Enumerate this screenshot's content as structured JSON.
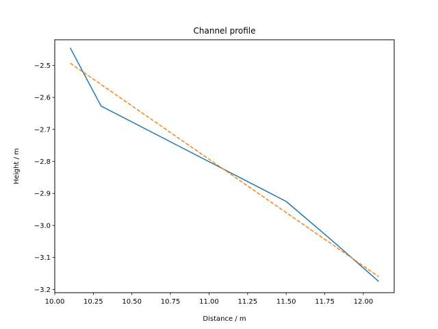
{
  "chart_data": {
    "type": "line",
    "title": "Channel profile",
    "xlabel": "Distance / m",
    "ylabel": "Height / m",
    "xlim": [
      10.0,
      12.2
    ],
    "ylim": [
      -3.21,
      -2.42
    ],
    "xticks": [
      10.0,
      10.25,
      10.5,
      10.75,
      11.0,
      11.25,
      11.5,
      11.75,
      12.0
    ],
    "xtick_labels": [
      "10.00",
      "10.25",
      "10.50",
      "10.75",
      "11.00",
      "11.25",
      "11.50",
      "11.75",
      "12.00"
    ],
    "yticks": [
      -2.5,
      -2.6,
      -2.7,
      -2.8,
      -2.9,
      -3.0,
      -3.1,
      -3.2
    ],
    "ytick_labels": [
      "−2.5",
      "−2.6",
      "−2.7",
      "−2.8",
      "−2.9",
      "−3.0",
      "−3.1",
      "−3.2"
    ],
    "grid": false,
    "series": [
      {
        "color": "#1f77b4",
        "style": "solid",
        "x": [
          10.1,
          10.3,
          11.5,
          11.78,
          12.1
        ],
        "y": [
          -2.445,
          -2.627,
          -2.925,
          -3.04,
          -3.175
        ]
      },
      {
        "color": "#ff7f0e",
        "style": "dashed",
        "x": [
          10.1,
          12.1
        ],
        "y": [
          -2.493,
          -3.16
        ]
      }
    ]
  }
}
